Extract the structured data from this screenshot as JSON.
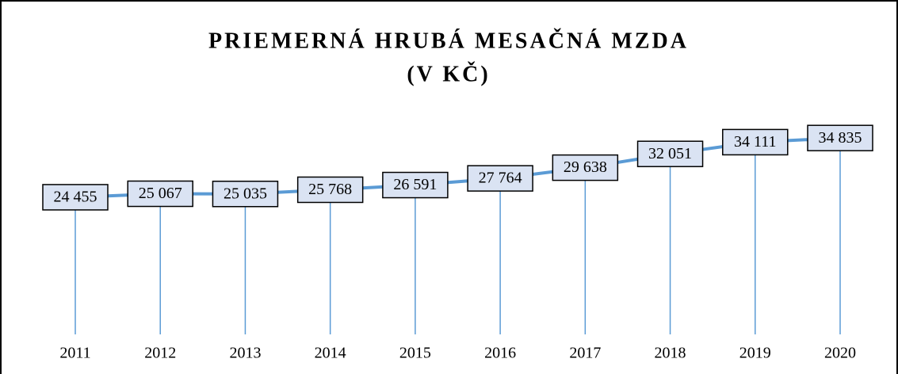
{
  "chart_data": {
    "type": "line",
    "title": "PRIEMERNÁ HRUBÁ MESAČNÁ MZDA",
    "subtitle": "(V KČ)",
    "categories": [
      "2011",
      "2012",
      "2013",
      "2014",
      "2015",
      "2016",
      "2017",
      "2018",
      "2019",
      "2020"
    ],
    "series": [
      {
        "name": "Priemerná hrubá mesačná mzda",
        "color": "#5b9bd5",
        "values": [
          24455,
          25067,
          25035,
          25768,
          26591,
          27764,
          29638,
          32051,
          34111,
          34835
        ],
        "value_labels": [
          "24 455",
          "25 067",
          "25 035",
          "25 768",
          "26 591",
          "27 764",
          "29 638",
          "32 051",
          "34 111",
          "34 835"
        ]
      }
    ],
    "ylim": [
      0,
      40000
    ],
    "drop_lines": true,
    "label_fill": "#dae3f3"
  }
}
